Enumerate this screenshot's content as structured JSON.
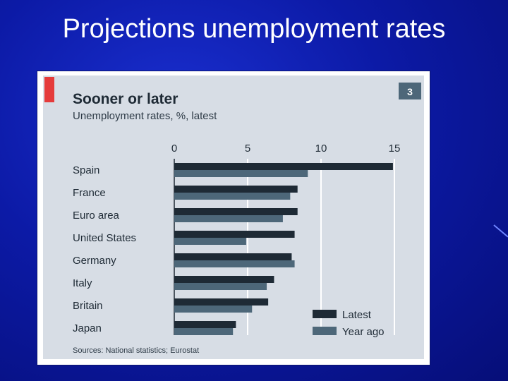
{
  "slide": {
    "title": "Projections unemployment rates"
  },
  "colors": {
    "background": "#0c1aa6",
    "panel": "#d7dde5",
    "accent": "#e53b3b",
    "latest": "#1e2a35",
    "year_ago": "#4d6779"
  },
  "chart_data": {
    "type": "bar",
    "orientation": "horizontal",
    "title": "Sooner or later",
    "subtitle": "Unemployment rates, %, latest",
    "badge": "3",
    "categories": [
      "Spain",
      "France",
      "Euro area",
      "United States",
      "Germany",
      "Italy",
      "Britain",
      "Japan"
    ],
    "series": [
      {
        "name": "Latest",
        "values": [
          14.9,
          8.4,
          8.4,
          8.2,
          8.0,
          6.8,
          6.4,
          4.2
        ]
      },
      {
        "name": "Year ago",
        "values": [
          9.1,
          7.9,
          7.4,
          4.9,
          8.2,
          6.3,
          5.3,
          4.0
        ]
      }
    ],
    "xlim": [
      0,
      15
    ],
    "ticks": [
      0,
      5,
      10,
      15
    ],
    "grid": true,
    "legend_position": "bottom-right",
    "source": "Sources: National statistics; Eurostat"
  }
}
